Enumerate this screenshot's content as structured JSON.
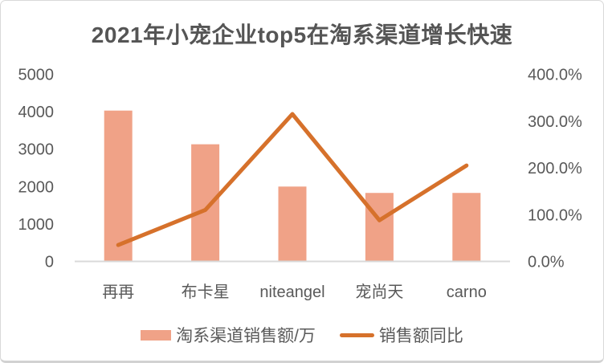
{
  "colors": {
    "bar": "#F0A287",
    "line": "#D6712B",
    "axis_text": "#595959",
    "title_text": "#555555",
    "baseline": "#D9D9D9",
    "card_border": "#D9D9D9"
  },
  "chart_data": {
    "type": "combo-bar-line",
    "title": "2021年小宠企业top5在淘系渠道增长快速",
    "categories": [
      "再再",
      "布卡星",
      "niteangel",
      "宠尚天",
      "carno"
    ],
    "series": [
      {
        "name": "淘系渠道销售额/万",
        "type": "bar",
        "axis": "left",
        "values": [
          4030,
          3130,
          2000,
          1830,
          1830
        ]
      },
      {
        "name": "销售额同比",
        "type": "line",
        "axis": "right",
        "unit": "%",
        "values": [
          35,
          110,
          315,
          88,
          205
        ]
      }
    ],
    "left_axis": {
      "range": [
        0,
        5000
      ],
      "ticks": [
        {
          "value": 0,
          "label": "0"
        },
        {
          "value": 1000,
          "label": "1000"
        },
        {
          "value": 2000,
          "label": "2000"
        },
        {
          "value": 3000,
          "label": "3000"
        },
        {
          "value": 4000,
          "label": "4000"
        },
        {
          "value": 5000,
          "label": "5000"
        }
      ]
    },
    "right_axis": {
      "range": [
        0,
        400
      ],
      "ticks": [
        {
          "value": 0,
          "label": "0.0%"
        },
        {
          "value": 100,
          "label": "100.0%"
        },
        {
          "value": 200,
          "label": "200.0%"
        },
        {
          "value": 300,
          "label": "300.0%"
        },
        {
          "value": 400,
          "label": "400.0%"
        }
      ]
    },
    "grid": false,
    "legend_position": "bottom"
  }
}
